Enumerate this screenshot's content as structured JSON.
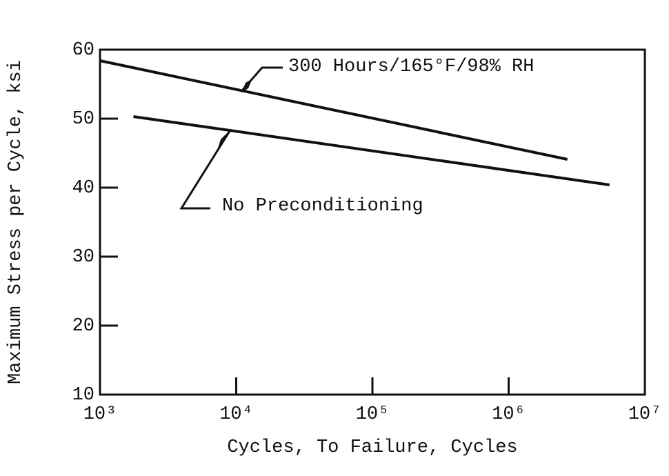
{
  "chart_data": {
    "type": "line",
    "x_label": "Cycles, To Failure, Cycles",
    "y_label": "Maximum Stress per Cycle, ksi",
    "log_x": true,
    "xlim": [
      1000,
      10000000
    ],
    "xticks": [
      {
        "value": 1000,
        "label": "10³"
      },
      {
        "value": 10000,
        "label": "10⁴"
      },
      {
        "value": 100000,
        "label": "10⁵"
      },
      {
        "value": 1000000,
        "label": "10⁶"
      },
      {
        "value": 10000000,
        "label": "10⁷"
      }
    ],
    "ylim": [
      10,
      60
    ],
    "yticks": [
      10,
      20,
      30,
      40,
      50,
      60
    ],
    "series": [
      {
        "name": "300 Hours/165°F/98% RH",
        "color": "#111111",
        "x": [
          1000,
          2700000
        ],
        "values": [
          58.4,
          44.1
        ]
      },
      {
        "name": "No Preconditioning",
        "color": "#111111",
        "x": [
          1760,
          5500000
        ],
        "values": [
          50.3,
          40.4
        ]
      }
    ]
  }
}
